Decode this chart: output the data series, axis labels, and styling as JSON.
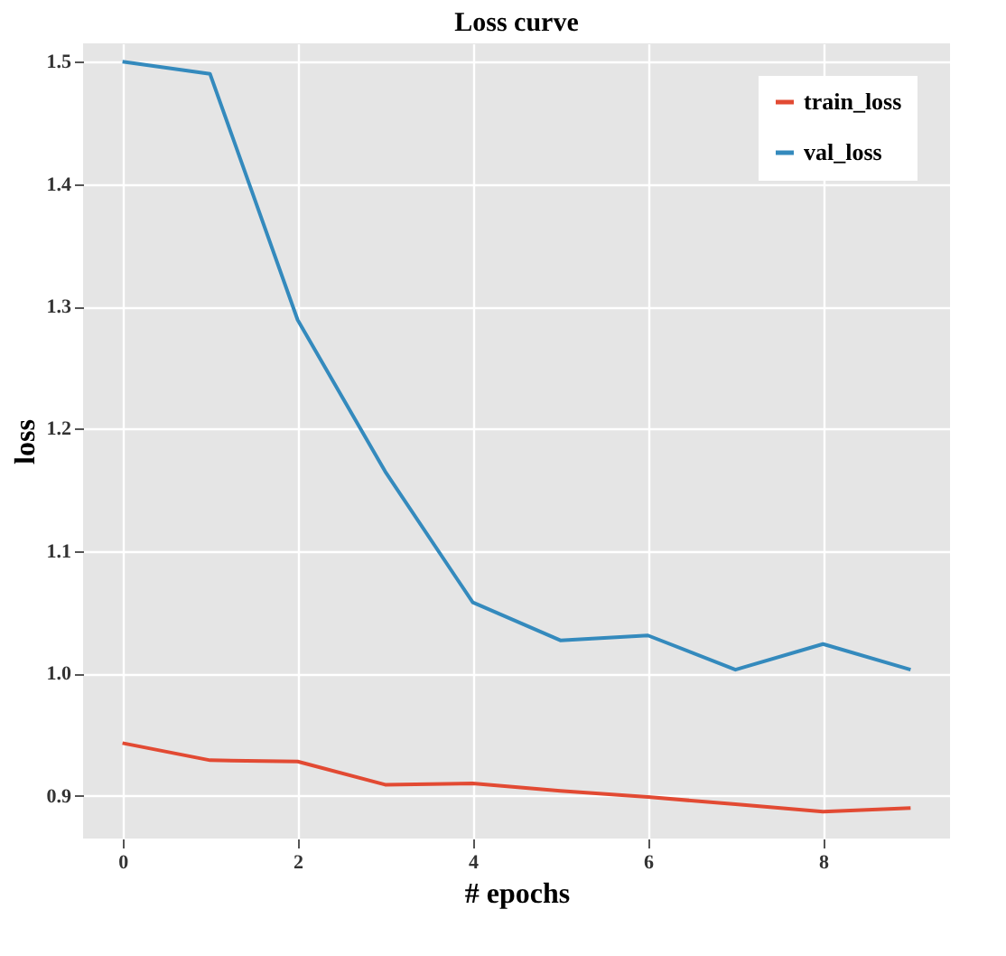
{
  "chart_data": {
    "type": "line",
    "title": "Loss curve",
    "xlabel": "# epochs",
    "ylabel": "loss",
    "x": [
      0,
      1,
      2,
      3,
      4,
      5,
      6,
      7,
      8,
      9
    ],
    "series": [
      {
        "name": "train_loss",
        "color": "#e24a33",
        "values": [
          0.943,
          0.929,
          0.928,
          0.909,
          0.91,
          0.904,
          0.899,
          0.893,
          0.887,
          0.89
        ]
      },
      {
        "name": "val_loss",
        "color": "#348abd",
        "values": [
          1.5,
          1.49,
          1.289,
          1.165,
          1.058,
          1.027,
          1.031,
          1.003,
          1.024,
          1.003
        ]
      }
    ],
    "xlim": [
      -0.45,
      9.45
    ],
    "xticks": [
      0,
      2,
      4,
      6,
      8
    ],
    "ylim": [
      0.865,
      1.515
    ],
    "yticks": [
      0.9,
      {
        "value": 1,
        "label": "1.0"
      },
      1.1,
      1.2,
      1.3,
      1.4,
      1.5
    ],
    "grid": true,
    "legend": "top right",
    "marker": "none",
    "line_style": "solid"
  }
}
